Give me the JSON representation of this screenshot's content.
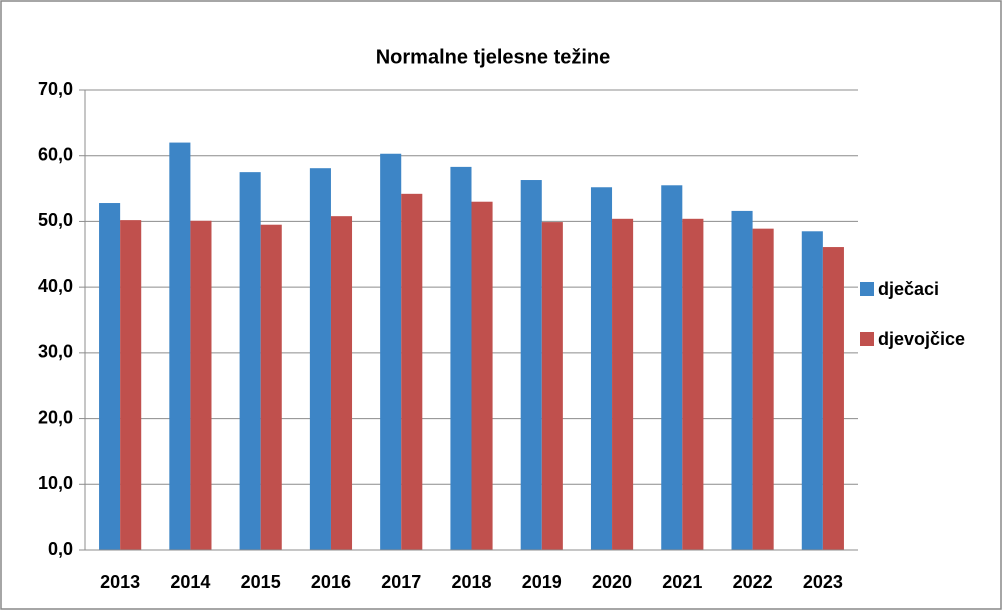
{
  "chart_data": {
    "type": "bar",
    "title": "Normalne tjelesne težine",
    "categories": [
      "2013",
      "2014",
      "2015",
      "2016",
      "2017",
      "2018",
      "2019",
      "2020",
      "2021",
      "2022",
      "2023"
    ],
    "series": [
      {
        "name": "dječaci",
        "color": "#3d85c6",
        "values": [
          52.8,
          62.0,
          57.5,
          58.1,
          60.3,
          58.3,
          56.3,
          55.2,
          55.5,
          51.6,
          48.5
        ]
      },
      {
        "name": "djevojčice",
        "color": "#c0504d",
        "values": [
          50.2,
          50.1,
          49.5,
          50.8,
          54.2,
          53.0,
          49.9,
          50.4,
          50.4,
          48.9,
          46.1
        ]
      }
    ],
    "ylim": [
      0,
      70
    ],
    "yticks": [
      {
        "value": 0,
        "label": "0,0"
      },
      {
        "value": 10,
        "label": "10,0"
      },
      {
        "value": 20,
        "label": "20,0"
      },
      {
        "value": 30,
        "label": "30,0"
      },
      {
        "value": 40,
        "label": "40,0"
      },
      {
        "value": 50,
        "label": "50,0"
      },
      {
        "value": 60,
        "label": "60,0"
      },
      {
        "value": 70,
        "label": "70,0"
      }
    ],
    "grid": true,
    "legend": "right"
  }
}
